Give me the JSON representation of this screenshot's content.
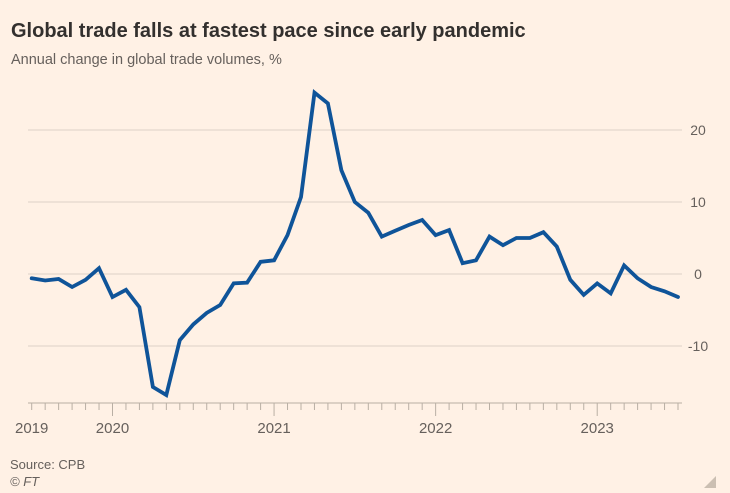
{
  "header": {
    "title": "Global trade falls at fastest pace since early pandemic",
    "subtitle": "Annual change in global trade volumes, %"
  },
  "footer": {
    "source": "Source: CPB",
    "ft_mark": "© FT"
  },
  "colors": {
    "background": "#FFF1E5",
    "line": "#0F5499",
    "title_text": "#33302E",
    "muted_text": "#66605C",
    "gridline": "#DCD1C6",
    "axis": "#B9AFA4"
  },
  "chart_data": {
    "type": "line",
    "title": "Global trade falls at fastest pace since early pandemic",
    "subtitle": "Annual change in global trade volumes, %",
    "ylabel": "%",
    "xlabel": "",
    "ylim": [
      -19,
      27
    ],
    "y_ticks": [
      20,
      10,
      0,
      -10
    ],
    "grid": "horizontal only",
    "legend": "none",
    "x_year_labels": [
      {
        "index": 0,
        "label": "2019"
      },
      {
        "index": 6,
        "label": "2020"
      },
      {
        "index": 18,
        "label": "2021"
      },
      {
        "index": 30,
        "label": "2022"
      },
      {
        "index": 42,
        "label": "2023"
      }
    ],
    "months": [
      "2019-07",
      "2019-08",
      "2019-09",
      "2019-10",
      "2019-11",
      "2019-12",
      "2020-01",
      "2020-02",
      "2020-03",
      "2020-04",
      "2020-05",
      "2020-06",
      "2020-07",
      "2020-08",
      "2020-09",
      "2020-10",
      "2020-11",
      "2020-12",
      "2021-01",
      "2021-02",
      "2021-03",
      "2021-04",
      "2021-05",
      "2021-06",
      "2021-07",
      "2021-08",
      "2021-09",
      "2021-10",
      "2021-11",
      "2021-12",
      "2022-01",
      "2022-02",
      "2022-03",
      "2022-04",
      "2022-05",
      "2022-06",
      "2022-07",
      "2022-08",
      "2022-09",
      "2022-10",
      "2022-11",
      "2022-12",
      "2023-01",
      "2023-02",
      "2023-03",
      "2023-04",
      "2023-05",
      "2023-06",
      "2023-07"
    ],
    "values": [
      -0.6,
      -0.9,
      -0.7,
      -1.8,
      -0.8,
      0.8,
      -3.2,
      -2.2,
      -4.6,
      -15.7,
      -16.8,
      -9.2,
      -7.0,
      -5.4,
      -4.3,
      -1.3,
      -1.2,
      1.7,
      1.9,
      5.4,
      10.7,
      25.2,
      23.7,
      14.4,
      10.0,
      8.5,
      5.2,
      6.0,
      6.8,
      7.5,
      5.4,
      6.1,
      1.5,
      1.9,
      5.2,
      4.0,
      5.0,
      5.0,
      5.8,
      3.8,
      -0.8,
      -2.9,
      -1.3,
      -2.7,
      1.2,
      -0.6,
      -1.8,
      -2.4,
      -3.2
    ]
  }
}
